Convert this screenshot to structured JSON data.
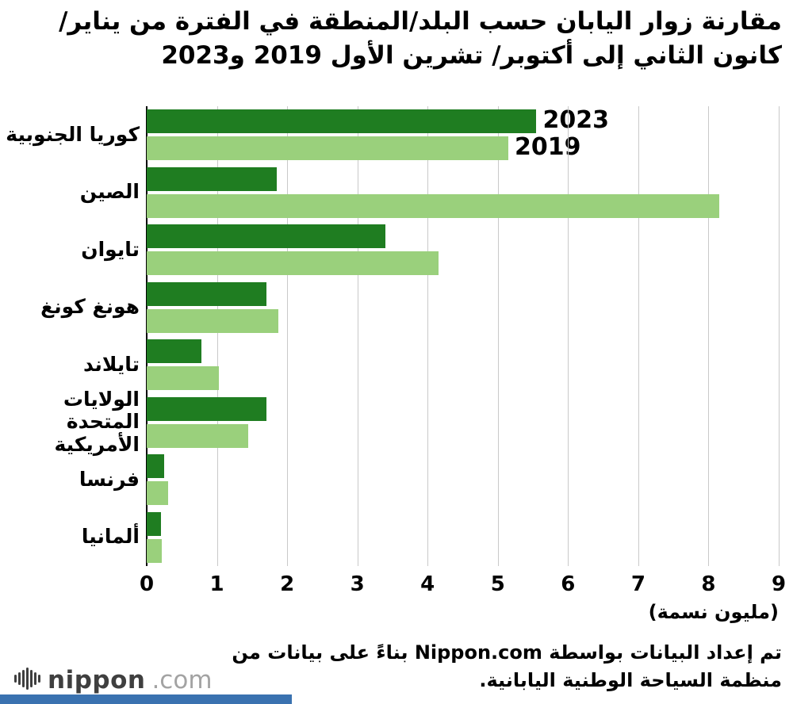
{
  "title": "مقارنة زوار اليابان حسب البلد/المنطقة في الفترة من يناير/ كانون الثاني إلى أكتوبر/ تشرين الأول 2019 و2023",
  "chart_data": {
    "type": "bar",
    "orientation": "horizontal",
    "categories": [
      "كوريا الجنوبية",
      "الصين",
      "تايوان",
      "هونغ كونغ",
      "تايلاند",
      "الولايات المتحدة الأمريكية",
      "فرنسا",
      "ألمانيا"
    ],
    "series": [
      {
        "name": "2023",
        "color": "#1f7d21",
        "values": [
          5.55,
          1.85,
          3.4,
          1.7,
          0.78,
          1.7,
          0.25,
          0.2
        ]
      },
      {
        "name": "2019",
        "color": "#9ad07c",
        "values": [
          5.15,
          8.15,
          4.15,
          1.87,
          1.03,
          1.45,
          0.3,
          0.21
        ]
      }
    ],
    "xlim": [
      0,
      9
    ],
    "xticks": [
      0,
      1,
      2,
      3,
      4,
      5,
      6,
      7,
      8,
      9
    ],
    "xlabel": "(مليون نسمة)",
    "grid": true,
    "legend_position": "end-of-first-bars"
  },
  "footer": {
    "source_note": "تم إعداد البيانات بواسطة Nippon.com بناءً على بيانات من منظمة السياحة الوطنية اليابانية.",
    "logo_main": "nippon",
    "logo_suffix": ".com",
    "accent_color": "#3a72b0",
    "logo_icon": "soundwave-icon"
  }
}
